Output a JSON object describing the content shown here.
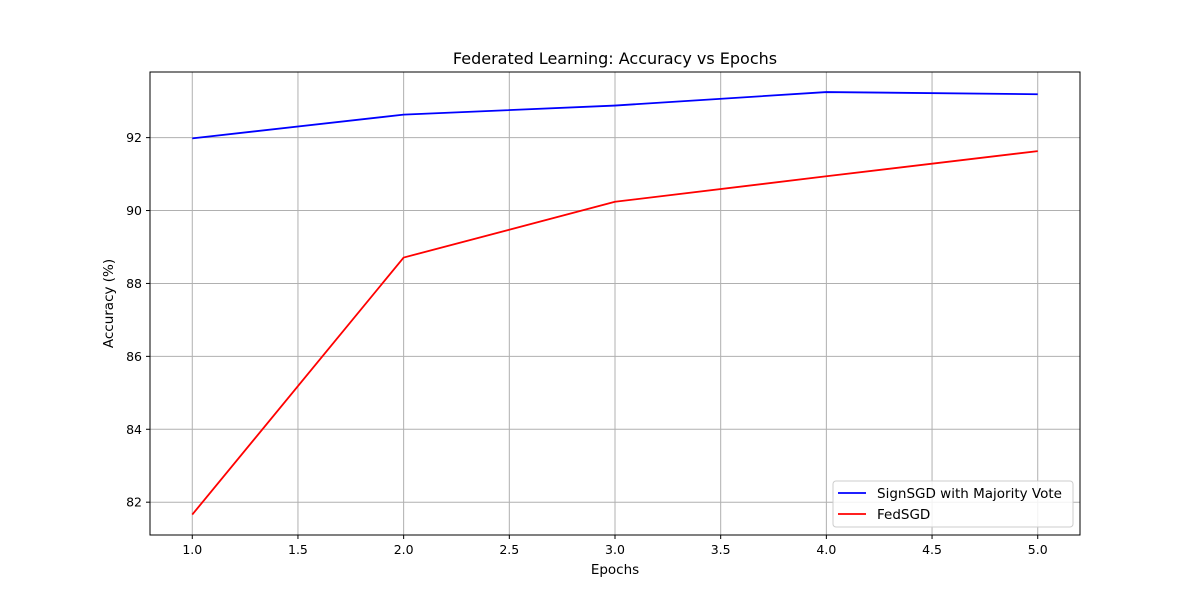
{
  "chart_data": {
    "type": "line",
    "title": "Federated Learning: Accuracy vs Epochs",
    "xlabel": "Epochs",
    "ylabel": "Accuracy (%)",
    "x": [
      1,
      2,
      3,
      4,
      5
    ],
    "xlim": [
      0.8,
      5.2
    ],
    "ylim": [
      81.1,
      93.8
    ],
    "xticks": [
      1.0,
      1.5,
      2.0,
      2.5,
      3.0,
      3.5,
      4.0,
      4.5,
      5.0
    ],
    "xtick_labels": [
      "1.0",
      "1.5",
      "2.0",
      "2.5",
      "3.0",
      "3.5",
      "4.0",
      "4.5",
      "5.0"
    ],
    "yticks": [
      82,
      84,
      86,
      88,
      90,
      92
    ],
    "ytick_labels": [
      "82",
      "84",
      "86",
      "88",
      "90",
      "92"
    ],
    "grid": true,
    "legend_position": "lower-right",
    "series": [
      {
        "name": "SignSGD with Majority Vote",
        "color": "#0000ff",
        "values": [
          91.98,
          92.63,
          92.88,
          93.25,
          93.19
        ]
      },
      {
        "name": "FedSGD",
        "color": "#ff0000",
        "values": [
          81.66,
          88.71,
          90.24,
          90.94,
          91.63
        ]
      }
    ]
  }
}
